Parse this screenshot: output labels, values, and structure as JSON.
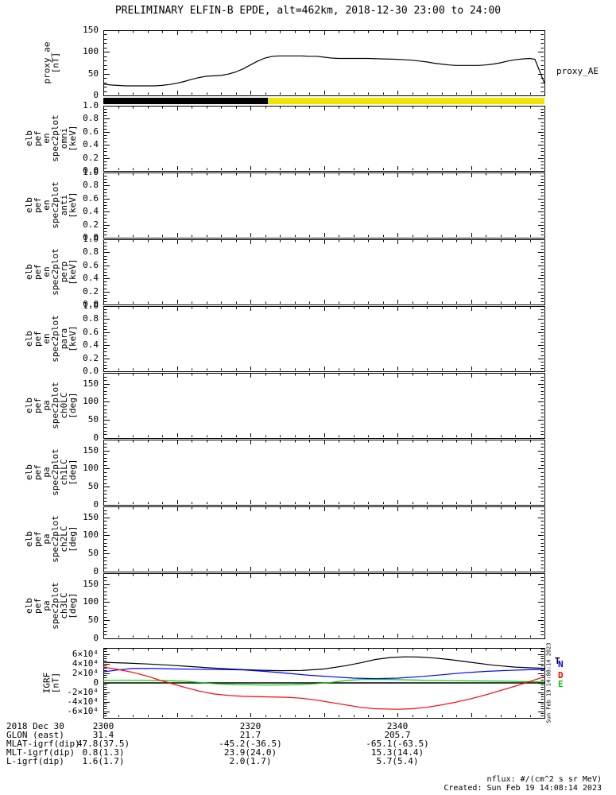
{
  "title": "PRELIMINARY ELFIN-B EPDE, alt=462km, 2018-12-30 23:00 to 24:00",
  "footer": {
    "nflux": "nflux: #/(cm^2 s sr MeV)",
    "created": "Created: Sun Feb 19 14:08:14 2023"
  },
  "side_timestamp": "Sun Feb 19 14:08:14 2023",
  "bottom_axis": {
    "date_label": "2018 Dec 30",
    "row_labels": [
      "GLON (east)",
      "MLAT-igrf(dip)",
      "MLT-igrf(dip)",
      "L-igrf(dip)"
    ],
    "ticks": [
      {
        "t": 0,
        "time": "2300",
        "glon": "31.4",
        "mlat": "47.8(37.5)",
        "mlt": "0.8(1.3)",
        "l": "1.6(1.7)"
      },
      {
        "t": 20,
        "time": "2320",
        "glon": "21.7",
        "mlat": "-45.2(-36.5)",
        "mlt": "23.9(24.0)",
        "l": "2.0(1.7)"
      },
      {
        "t": 40,
        "time": "2340",
        "glon": "205.7",
        "mlat": "-65.1(-63.5)",
        "mlt": "15.3(14.4)",
        "l": "5.7(5.4)"
      }
    ]
  },
  "chart_data": {
    "type": "multi-panel-time-series",
    "xaxis": {
      "xlim_minutes": [
        0,
        60
      ],
      "start_time": "2018-12-30 23:00",
      "major_ticks_minutes": [
        10,
        20,
        30,
        40,
        50
      ],
      "minor_tick_step_minutes": 2
    },
    "panels": [
      {
        "panel": "proxy_ae",
        "type": "line",
        "ylabel": [
          "proxy_ae",
          "[nT]"
        ],
        "right_label": "proxy_AE",
        "ylim": [
          0,
          150
        ],
        "yticks": [
          0,
          50,
          100,
          150
        ],
        "ytick_labels": [
          "0",
          "50",
          "100",
          "150"
        ],
        "minor_y": 10,
        "series": [
          {
            "name": "proxy_AE",
            "color": "#000000",
            "points": [
              [
                0,
                26
              ],
              [
                1,
                24
              ],
              [
                3,
                22
              ],
              [
                5,
                22
              ],
              [
                7,
                22
              ],
              [
                8,
                23
              ],
              [
                9,
                25
              ],
              [
                10,
                28
              ],
              [
                11,
                32
              ],
              [
                12,
                37
              ],
              [
                13,
                41
              ],
              [
                14,
                44
              ],
              [
                15,
                45
              ],
              [
                16,
                46
              ],
              [
                17,
                49
              ],
              [
                18,
                54
              ],
              [
                19,
                61
              ],
              [
                20,
                70
              ],
              [
                21,
                79
              ],
              [
                22,
                86
              ],
              [
                23,
                90
              ],
              [
                24,
                91
              ],
              [
                27,
                91
              ],
              [
                28,
                90
              ],
              [
                29,
                90
              ],
              [
                30,
                88
              ],
              [
                31,
                86
              ],
              [
                32,
                85
              ],
              [
                34,
                85
              ],
              [
                36,
                85
              ],
              [
                38,
                84
              ],
              [
                40,
                83
              ],
              [
                41,
                82
              ],
              [
                42,
                81
              ],
              [
                43,
                79
              ],
              [
                44,
                77
              ],
              [
                45,
                74
              ],
              [
                46,
                72
              ],
              [
                47,
                70
              ],
              [
                48,
                69
              ],
              [
                50,
                69
              ],
              [
                51,
                69
              ],
              [
                52,
                70
              ],
              [
                53,
                72
              ],
              [
                54,
                75
              ],
              [
                55,
                79
              ],
              [
                56,
                82
              ],
              [
                57,
                84
              ],
              [
                58,
                85
              ],
              [
                58.7,
                83
              ],
              [
                60,
                28
              ]
            ]
          }
        ]
      },
      {
        "panel": "fast_survey_flag_strip",
        "type": "strip",
        "segments": [
          {
            "color": "#000000",
            "t_from": 0,
            "t_to": 22.4
          },
          {
            "color": "#f0e400",
            "t_from": 22.4,
            "t_to": 60
          }
        ]
      },
      {
        "panel": "elb_pef_en_spec2plot_omni",
        "type": "empty",
        "ylabel": [
          "elb",
          "pef",
          "en",
          "spec2plot",
          "omni",
          "[keV]"
        ],
        "ylim": [
          0,
          1
        ],
        "yticks": [
          0,
          0.2,
          0.4,
          0.6,
          0.8,
          1.0
        ],
        "ytick_labels": [
          "0.0",
          "0.2",
          "0.4",
          "0.6",
          "0.8",
          "1.0"
        ],
        "minor_y": 0.05
      },
      {
        "panel": "elb_pef_en_spec2plot_anti",
        "type": "empty",
        "ylabel": [
          "elb",
          "pef",
          "en",
          "spec2plot",
          "anti",
          "[keV]"
        ],
        "ylim": [
          0,
          1
        ],
        "yticks": [
          0,
          0.2,
          0.4,
          0.6,
          0.8,
          1.0
        ],
        "ytick_labels": [
          "0.0",
          "0.2",
          "0.4",
          "0.6",
          "0.8",
          "1.0"
        ],
        "minor_y": 0.05
      },
      {
        "panel": "elb_pef_en_spec2plot_perp",
        "type": "empty",
        "ylabel": [
          "elb",
          "pef",
          "en",
          "spec2plot",
          "perp",
          "[keV]"
        ],
        "ylim": [
          0,
          1
        ],
        "yticks": [
          0,
          0.2,
          0.4,
          0.6,
          0.8,
          1.0
        ],
        "ytick_labels": [
          "0.0",
          "0.2",
          "0.4",
          "0.6",
          "0.8",
          "1.0"
        ],
        "minor_y": 0.05
      },
      {
        "panel": "elb_pef_en_spec2plot_para",
        "type": "empty",
        "ylabel": [
          "elb",
          "pef",
          "en",
          "spec2plot",
          "para",
          "[keV]"
        ],
        "ylim": [
          0,
          1
        ],
        "yticks": [
          0,
          0.2,
          0.4,
          0.6,
          0.8,
          1.0
        ],
        "ytick_labels": [
          "0.0",
          "0.2",
          "0.4",
          "0.6",
          "0.8",
          "1.0"
        ],
        "minor_y": 0.05
      },
      {
        "panel": "elb_pef_pa_spec2plot_ch0LC",
        "type": "empty",
        "ylabel": [
          "elb",
          "pef",
          "pa",
          "spec2plot",
          "ch0LC",
          "[deg]"
        ],
        "ylim": [
          0,
          180
        ],
        "yticks": [
          0,
          50,
          100,
          150
        ],
        "ytick_labels": [
          "0",
          "50",
          "100",
          "150"
        ],
        "minor_y": 10
      },
      {
        "panel": "elb_pef_pa_spec2plot_ch1LC",
        "type": "empty",
        "ylabel": [
          "elb",
          "pef",
          "pa",
          "spec2plot",
          "ch1LC",
          "[deg]"
        ],
        "ylim": [
          0,
          180
        ],
        "yticks": [
          0,
          50,
          100,
          150
        ],
        "ytick_labels": [
          "0",
          "50",
          "100",
          "150"
        ],
        "minor_y": 10
      },
      {
        "panel": "elb_pef_pa_spec2plot_ch2LC",
        "type": "empty",
        "ylabel": [
          "elb",
          "pef",
          "pa",
          "spec2plot",
          "ch2LC",
          "[deg]"
        ],
        "ylim": [
          0,
          180
        ],
        "yticks": [
          0,
          50,
          100,
          150
        ],
        "ytick_labels": [
          "0",
          "50",
          "100",
          "150"
        ],
        "minor_y": 10
      },
      {
        "panel": "elb_pef_pa_spec2plot_ch3LC",
        "type": "empty",
        "ylabel": [
          "elb",
          "pef",
          "pa",
          "spec2plot",
          "ch3LC",
          "[deg]"
        ],
        "ylim": [
          0,
          180
        ],
        "yticks": [
          0,
          50,
          100,
          150
        ],
        "ytick_labels": [
          "0",
          "50",
          "100",
          "150"
        ],
        "minor_y": 10
      },
      {
        "panel": "IGRF",
        "type": "line",
        "ylabel": [
          "IGRF",
          "[nT]"
        ],
        "ylim": [
          -73000,
          73000
        ],
        "yticks": [
          -60000,
          -40000,
          -20000,
          0,
          20000,
          40000,
          60000
        ],
        "ytick_labels": [
          "-6×10⁴",
          "-4×10⁴",
          "-2×10⁴",
          "0",
          "2×10⁴",
          "4×10⁴",
          "6×10⁴"
        ],
        "minor_y": 5000,
        "zero_line": true,
        "legend": [
          {
            "label": "T",
            "color": "#000000"
          },
          {
            "label": "N",
            "color": "#0000ff"
          },
          {
            "label": "D",
            "color": "#ff0000"
          },
          {
            "label": "E",
            "color": "#00cc00"
          }
        ],
        "series": [
          {
            "name": "T",
            "color": "#000000",
            "points": [
              [
                0,
                43000
              ],
              [
                3,
                41500
              ],
              [
                6,
                39500
              ],
              [
                9,
                37000
              ],
              [
                12,
                34000
              ],
              [
                15,
                31000
              ],
              [
                18,
                28500
              ],
              [
                21,
                26500
              ],
              [
                24,
                25500
              ],
              [
                27,
                26000
              ],
              [
                30,
                29000
              ],
              [
                33,
                36000
              ],
              [
                35,
                42000
              ],
              [
                37,
                49000
              ],
              [
                39,
                53000
              ],
              [
                41,
                54500
              ],
              [
                43,
                54000
              ],
              [
                45,
                52000
              ],
              [
                47,
                49000
              ],
              [
                50,
                43000
              ],
              [
                53,
                37000
              ],
              [
                56,
                33000
              ],
              [
                58,
                31500
              ],
              [
                60,
                30500
              ]
            ]
          },
          {
            "name": "N",
            "color": "#0000ff",
            "points": [
              [
                0,
                23000
              ],
              [
                2,
                27000
              ],
              [
                4,
                30000
              ],
              [
                7,
                30000
              ],
              [
                10,
                29000
              ],
              [
                13,
                28500
              ],
              [
                16,
                28000
              ],
              [
                19,
                27000
              ],
              [
                22,
                24000
              ],
              [
                25,
                20000
              ],
              [
                28,
                16000
              ],
              [
                31,
                13000
              ],
              [
                34,
                10000
              ],
              [
                37,
                9000
              ],
              [
                40,
                10000
              ],
              [
                43,
                13000
              ],
              [
                46,
                17000
              ],
              [
                49,
                21000
              ],
              [
                52,
                24000
              ],
              [
                55,
                26000
              ],
              [
                58,
                27500
              ],
              [
                60,
                28000
              ]
            ]
          },
          {
            "name": "E",
            "color": "#00cc00",
            "points": [
              [
                0,
                5500
              ],
              [
                4,
                5500
              ],
              [
                8,
                5000
              ],
              [
                11,
                3500
              ],
              [
                13,
                1000
              ],
              [
                15,
                -1500
              ],
              [
                18,
                -3500
              ],
              [
                22,
                -4500
              ],
              [
                26,
                -4000
              ],
              [
                29,
                -1500
              ],
              [
                31,
                1000
              ],
              [
                33,
                5000
              ],
              [
                35,
                7000
              ],
              [
                38,
                7500
              ],
              [
                41,
                6500
              ],
              [
                44,
                5500
              ],
              [
                48,
                4500
              ],
              [
                52,
                4000
              ],
              [
                55,
                3500
              ],
              [
                58,
                2500
              ],
              [
                60,
                2000
              ]
            ]
          },
          {
            "name": "D",
            "color": "#ff0000",
            "points": [
              [
                0,
                33000
              ],
              [
                2,
                28000
              ],
              [
                4,
                22000
              ],
              [
                6,
                14000
              ],
              [
                8,
                4000
              ],
              [
                9,
                0
              ],
              [
                11,
                -9000
              ],
              [
                13,
                -17000
              ],
              [
                15,
                -23000
              ],
              [
                17,
                -26000
              ],
              [
                19,
                -28000
              ],
              [
                22,
                -29000
              ],
              [
                25,
                -30000
              ],
              [
                27,
                -32000
              ],
              [
                29,
                -36000
              ],
              [
                31,
                -41000
              ],
              [
                33,
                -46000
              ],
              [
                35,
                -51000
              ],
              [
                37,
                -54000
              ],
              [
                40,
                -55000
              ],
              [
                42,
                -54000
              ],
              [
                44,
                -51000
              ],
              [
                46,
                -46000
              ],
              [
                48,
                -40000
              ],
              [
                50,
                -33000
              ],
              [
                52,
                -25000
              ],
              [
                54,
                -16000
              ],
              [
                56,
                -7000
              ],
              [
                58,
                3000
              ],
              [
                59,
                8000
              ],
              [
                60,
                13000
              ]
            ]
          }
        ]
      }
    ]
  }
}
